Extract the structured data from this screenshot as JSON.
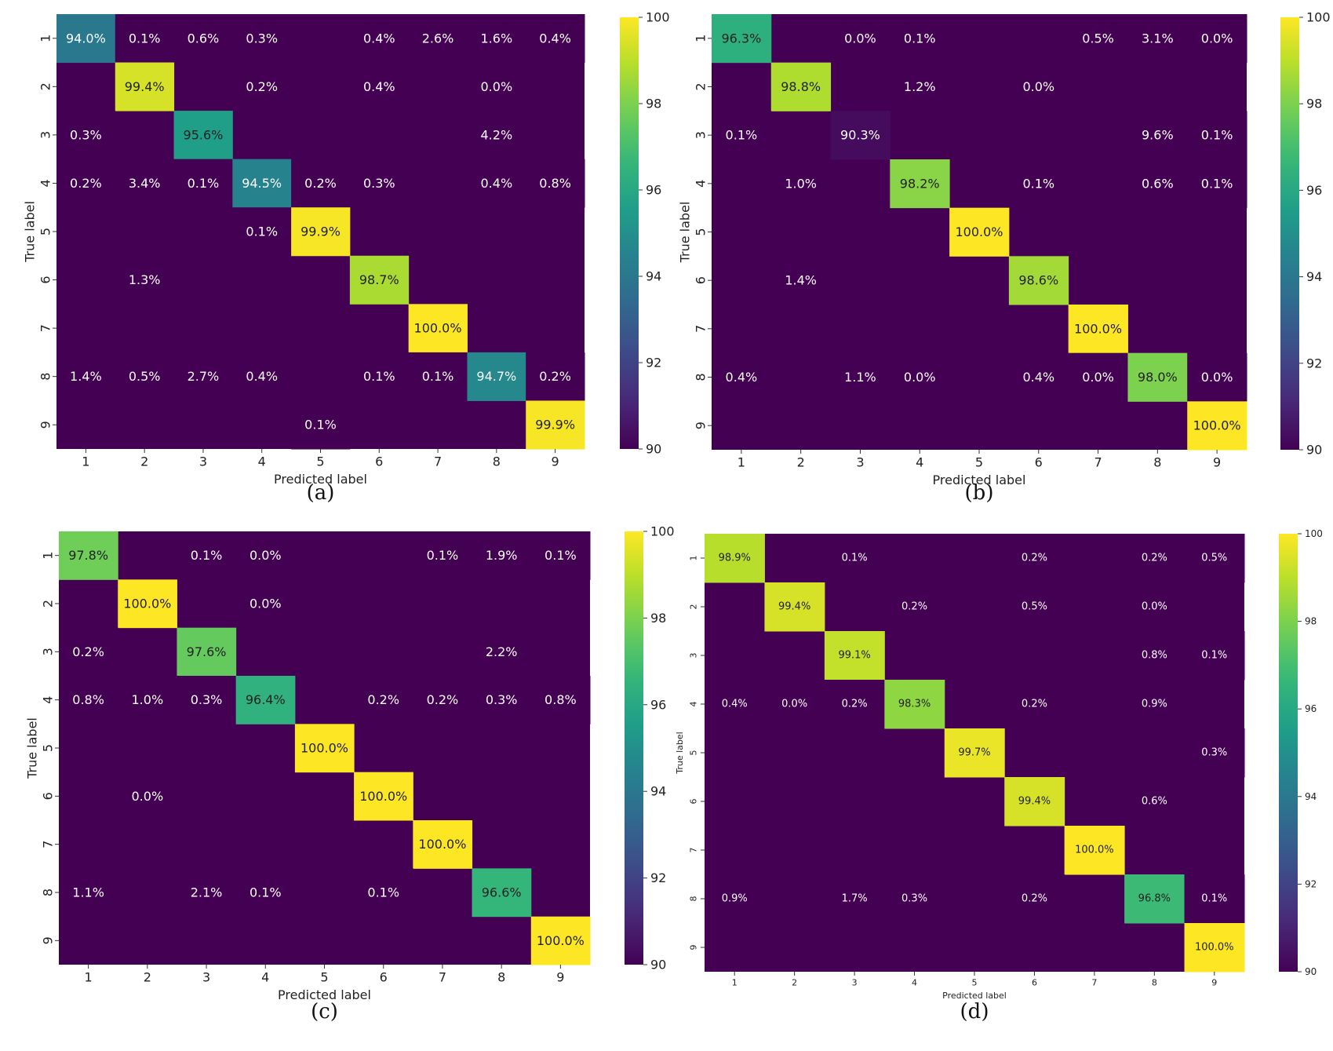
{
  "colorbar": {
    "ticks": [
      "90",
      "92",
      "94",
      "96",
      "98",
      "100"
    ],
    "range": [
      90,
      100
    ]
  },
  "chart_data": [
    {
      "type": "heatmap",
      "caption": "(a)",
      "xlabel": "Predicted label",
      "ylabel": "True label",
      "x_categories": [
        "1",
        "2",
        "3",
        "4",
        "5",
        "6",
        "7",
        "8",
        "9"
      ],
      "y_categories": [
        "1",
        "2",
        "3",
        "4",
        "5",
        "6",
        "7",
        "8",
        "9"
      ],
      "colorbar_range": [
        90,
        100
      ],
      "cells": [
        {
          "r": 1,
          "c": 1,
          "v": 94.0,
          "label": "94.0%"
        },
        {
          "r": 1,
          "c": 2,
          "v": 0.1,
          "label": "0.1%"
        },
        {
          "r": 1,
          "c": 3,
          "v": 0.6,
          "label": "0.6%"
        },
        {
          "r": 1,
          "c": 4,
          "v": 0.3,
          "label": "0.3%"
        },
        {
          "r": 1,
          "c": 6,
          "v": 0.4,
          "label": "0.4%"
        },
        {
          "r": 1,
          "c": 7,
          "v": 2.6,
          "label": "2.6%"
        },
        {
          "r": 1,
          "c": 8,
          "v": 1.6,
          "label": "1.6%"
        },
        {
          "r": 1,
          "c": 9,
          "v": 0.4,
          "label": "0.4%"
        },
        {
          "r": 2,
          "c": 2,
          "v": 99.4,
          "label": "99.4%"
        },
        {
          "r": 2,
          "c": 4,
          "v": 0.2,
          "label": "0.2%"
        },
        {
          "r": 2,
          "c": 6,
          "v": 0.4,
          "label": "0.4%"
        },
        {
          "r": 2,
          "c": 8,
          "v": 0.0,
          "label": "0.0%"
        },
        {
          "r": 3,
          "c": 1,
          "v": 0.3,
          "label": "0.3%"
        },
        {
          "r": 3,
          "c": 3,
          "v": 95.6,
          "label": "95.6%"
        },
        {
          "r": 3,
          "c": 8,
          "v": 4.2,
          "label": "4.2%"
        },
        {
          "r": 4,
          "c": 1,
          "v": 0.2,
          "label": "0.2%"
        },
        {
          "r": 4,
          "c": 2,
          "v": 3.4,
          "label": "3.4%"
        },
        {
          "r": 4,
          "c": 3,
          "v": 0.1,
          "label": "0.1%"
        },
        {
          "r": 4,
          "c": 4,
          "v": 94.5,
          "label": "94.5%"
        },
        {
          "r": 4,
          "c": 5,
          "v": 0.2,
          "label": "0.2%"
        },
        {
          "r": 4,
          "c": 6,
          "v": 0.3,
          "label": "0.3%"
        },
        {
          "r": 4,
          "c": 8,
          "v": 0.4,
          "label": "0.4%"
        },
        {
          "r": 4,
          "c": 9,
          "v": 0.8,
          "label": "0.8%"
        },
        {
          "r": 5,
          "c": 4,
          "v": 0.1,
          "label": "0.1%"
        },
        {
          "r": 5,
          "c": 5,
          "v": 99.9,
          "label": "99.9%"
        },
        {
          "r": 6,
          "c": 2,
          "v": 1.3,
          "label": "1.3%"
        },
        {
          "r": 6,
          "c": 6,
          "v": 98.7,
          "label": "98.7%"
        },
        {
          "r": 7,
          "c": 7,
          "v": 100.0,
          "label": "100.0%"
        },
        {
          "r": 8,
          "c": 1,
          "v": 1.4,
          "label": "1.4%"
        },
        {
          "r": 8,
          "c": 2,
          "v": 0.5,
          "label": "0.5%"
        },
        {
          "r": 8,
          "c": 3,
          "v": 2.7,
          "label": "2.7%"
        },
        {
          "r": 8,
          "c": 4,
          "v": 0.4,
          "label": "0.4%"
        },
        {
          "r": 8,
          "c": 6,
          "v": 0.1,
          "label": "0.1%"
        },
        {
          "r": 8,
          "c": 7,
          "v": 0.1,
          "label": "0.1%"
        },
        {
          "r": 8,
          "c": 8,
          "v": 94.7,
          "label": "94.7%"
        },
        {
          "r": 8,
          "c": 9,
          "v": 0.2,
          "label": "0.2%"
        },
        {
          "r": 9,
          "c": 5,
          "v": 0.1,
          "label": "0.1%"
        },
        {
          "r": 9,
          "c": 9,
          "v": 99.9,
          "label": "99.9%"
        }
      ]
    },
    {
      "type": "heatmap",
      "caption": "(b)",
      "xlabel": "Predicted label",
      "ylabel": "True label",
      "x_categories": [
        "1",
        "2",
        "3",
        "4",
        "5",
        "6",
        "7",
        "8",
        "9"
      ],
      "y_categories": [
        "1",
        "2",
        "3",
        "4",
        "5",
        "6",
        "7",
        "8",
        "9"
      ],
      "colorbar_range": [
        90,
        100
      ],
      "cells": [
        {
          "r": 1,
          "c": 1,
          "v": 96.3,
          "label": "96.3%"
        },
        {
          "r": 1,
          "c": 3,
          "v": 0.0,
          "label": "0.0%"
        },
        {
          "r": 1,
          "c": 4,
          "v": 0.1,
          "label": "0.1%"
        },
        {
          "r": 1,
          "c": 7,
          "v": 0.5,
          "label": "0.5%"
        },
        {
          "r": 1,
          "c": 8,
          "v": 3.1,
          "label": "3.1%"
        },
        {
          "r": 1,
          "c": 9,
          "v": 0.0,
          "label": "0.0%"
        },
        {
          "r": 2,
          "c": 2,
          "v": 98.8,
          "label": "98.8%"
        },
        {
          "r": 2,
          "c": 4,
          "v": 1.2,
          "label": "1.2%"
        },
        {
          "r": 2,
          "c": 6,
          "v": 0.0,
          "label": "0.0%"
        },
        {
          "r": 3,
          "c": 1,
          "v": 0.1,
          "label": "0.1%"
        },
        {
          "r": 3,
          "c": 3,
          "v": 90.3,
          "label": "90.3%"
        },
        {
          "r": 3,
          "c": 8,
          "v": 9.6,
          "label": "9.6%"
        },
        {
          "r": 3,
          "c": 9,
          "v": 0.1,
          "label": "0.1%"
        },
        {
          "r": 4,
          "c": 2,
          "v": 1.0,
          "label": "1.0%"
        },
        {
          "r": 4,
          "c": 4,
          "v": 98.2,
          "label": "98.2%"
        },
        {
          "r": 4,
          "c": 6,
          "v": 0.1,
          "label": "0.1%"
        },
        {
          "r": 4,
          "c": 8,
          "v": 0.6,
          "label": "0.6%"
        },
        {
          "r": 4,
          "c": 9,
          "v": 0.1,
          "label": "0.1%"
        },
        {
          "r": 5,
          "c": 5,
          "v": 100.0,
          "label": "100.0%"
        },
        {
          "r": 6,
          "c": 2,
          "v": 1.4,
          "label": "1.4%"
        },
        {
          "r": 6,
          "c": 6,
          "v": 98.6,
          "label": "98.6%"
        },
        {
          "r": 7,
          "c": 7,
          "v": 100.0,
          "label": "100.0%"
        },
        {
          "r": 8,
          "c": 1,
          "v": 0.4,
          "label": "0.4%"
        },
        {
          "r": 8,
          "c": 3,
          "v": 1.1,
          "label": "1.1%"
        },
        {
          "r": 8,
          "c": 4,
          "v": 0.0,
          "label": "0.0%"
        },
        {
          "r": 8,
          "c": 6,
          "v": 0.4,
          "label": "0.4%"
        },
        {
          "r": 8,
          "c": 7,
          "v": 0.0,
          "label": "0.0%"
        },
        {
          "r": 8,
          "c": 8,
          "v": 98.0,
          "label": "98.0%"
        },
        {
          "r": 8,
          "c": 9,
          "v": 0.0,
          "label": "0.0%"
        },
        {
          "r": 9,
          "c": 9,
          "v": 100.0,
          "label": "100.0%"
        }
      ]
    },
    {
      "type": "heatmap",
      "caption": "(c)",
      "xlabel": "Predicted label",
      "ylabel": "True label",
      "x_categories": [
        "1",
        "2",
        "3",
        "4",
        "5",
        "6",
        "7",
        "8",
        "9"
      ],
      "y_categories": [
        "1",
        "2",
        "3",
        "4",
        "5",
        "6",
        "7",
        "8",
        "9"
      ],
      "colorbar_range": [
        90,
        100
      ],
      "cells": [
        {
          "r": 1,
          "c": 1,
          "v": 97.8,
          "label": "97.8%"
        },
        {
          "r": 1,
          "c": 3,
          "v": 0.1,
          "label": "0.1%"
        },
        {
          "r": 1,
          "c": 4,
          "v": 0.0,
          "label": "0.0%"
        },
        {
          "r": 1,
          "c": 7,
          "v": 0.1,
          "label": "0.1%"
        },
        {
          "r": 1,
          "c": 8,
          "v": 1.9,
          "label": "1.9%"
        },
        {
          "r": 1,
          "c": 9,
          "v": 0.1,
          "label": "0.1%"
        },
        {
          "r": 2,
          "c": 2,
          "v": 100.0,
          "label": "100.0%"
        },
        {
          "r": 2,
          "c": 4,
          "v": 0.0,
          "label": "0.0%"
        },
        {
          "r": 3,
          "c": 1,
          "v": 0.2,
          "label": "0.2%"
        },
        {
          "r": 3,
          "c": 3,
          "v": 97.6,
          "label": "97.6%"
        },
        {
          "r": 3,
          "c": 8,
          "v": 2.2,
          "label": "2.2%"
        },
        {
          "r": 4,
          "c": 1,
          "v": 0.8,
          "label": "0.8%"
        },
        {
          "r": 4,
          "c": 2,
          "v": 1.0,
          "label": "1.0%"
        },
        {
          "r": 4,
          "c": 3,
          "v": 0.3,
          "label": "0.3%"
        },
        {
          "r": 4,
          "c": 4,
          "v": 96.4,
          "label": "96.4%"
        },
        {
          "r": 4,
          "c": 6,
          "v": 0.2,
          "label": "0.2%"
        },
        {
          "r": 4,
          "c": 7,
          "v": 0.2,
          "label": "0.2%"
        },
        {
          "r": 4,
          "c": 8,
          "v": 0.3,
          "label": "0.3%"
        },
        {
          "r": 4,
          "c": 9,
          "v": 0.8,
          "label": "0.8%"
        },
        {
          "r": 5,
          "c": 5,
          "v": 100.0,
          "label": "100.0%"
        },
        {
          "r": 6,
          "c": 2,
          "v": 0.0,
          "label": "0.0%"
        },
        {
          "r": 6,
          "c": 6,
          "v": 100.0,
          "label": "100.0%"
        },
        {
          "r": 7,
          "c": 7,
          "v": 100.0,
          "label": "100.0%"
        },
        {
          "r": 8,
          "c": 1,
          "v": 1.1,
          "label": "1.1%"
        },
        {
          "r": 8,
          "c": 3,
          "v": 2.1,
          "label": "2.1%"
        },
        {
          "r": 8,
          "c": 4,
          "v": 0.1,
          "label": "0.1%"
        },
        {
          "r": 8,
          "c": 6,
          "v": 0.1,
          "label": "0.1%"
        },
        {
          "r": 8,
          "c": 8,
          "v": 96.6,
          "label": "96.6%"
        },
        {
          "r": 9,
          "c": 9,
          "v": 100.0,
          "label": "100.0%"
        }
      ]
    },
    {
      "type": "heatmap",
      "caption": "(d)",
      "xlabel": "Predicted label",
      "ylabel": "True label",
      "x_categories": [
        "1",
        "2",
        "3",
        "4",
        "5",
        "6",
        "7",
        "8",
        "9"
      ],
      "y_categories": [
        "1",
        "2",
        "3",
        "4",
        "5",
        "6",
        "7",
        "8",
        "9"
      ],
      "colorbar_range": [
        90,
        100
      ],
      "cells": [
        {
          "r": 1,
          "c": 1,
          "v": 98.9,
          "label": "98.9%"
        },
        {
          "r": 1,
          "c": 3,
          "v": 0.1,
          "label": "0.1%"
        },
        {
          "r": 1,
          "c": 6,
          "v": 0.2,
          "label": "0.2%"
        },
        {
          "r": 1,
          "c": 8,
          "v": 0.2,
          "label": "0.2%"
        },
        {
          "r": 1,
          "c": 9,
          "v": 0.5,
          "label": "0.5%"
        },
        {
          "r": 2,
          "c": 2,
          "v": 99.4,
          "label": "99.4%"
        },
        {
          "r": 2,
          "c": 4,
          "v": 0.2,
          "label": "0.2%"
        },
        {
          "r": 2,
          "c": 6,
          "v": 0.5,
          "label": "0.5%"
        },
        {
          "r": 2,
          "c": 8,
          "v": 0.0,
          "label": "0.0%"
        },
        {
          "r": 3,
          "c": 3,
          "v": 99.1,
          "label": "99.1%"
        },
        {
          "r": 3,
          "c": 8,
          "v": 0.8,
          "label": "0.8%"
        },
        {
          "r": 3,
          "c": 9,
          "v": 0.1,
          "label": "0.1%"
        },
        {
          "r": 4,
          "c": 1,
          "v": 0.4,
          "label": "0.4%"
        },
        {
          "r": 4,
          "c": 2,
          "v": 0.0,
          "label": "0.0%"
        },
        {
          "r": 4,
          "c": 3,
          "v": 0.2,
          "label": "0.2%"
        },
        {
          "r": 4,
          "c": 4,
          "v": 98.3,
          "label": "98.3%"
        },
        {
          "r": 4,
          "c": 6,
          "v": 0.2,
          "label": "0.2%"
        },
        {
          "r": 4,
          "c": 8,
          "v": 0.9,
          "label": "0.9%"
        },
        {
          "r": 5,
          "c": 5,
          "v": 99.7,
          "label": "99.7%"
        },
        {
          "r": 5,
          "c": 9,
          "v": 0.3,
          "label": "0.3%"
        },
        {
          "r": 6,
          "c": 6,
          "v": 99.4,
          "label": "99.4%"
        },
        {
          "r": 6,
          "c": 8,
          "v": 0.6,
          "label": "0.6%"
        },
        {
          "r": 7,
          "c": 7,
          "v": 100.0,
          "label": "100.0%"
        },
        {
          "r": 8,
          "c": 1,
          "v": 0.9,
          "label": "0.9%"
        },
        {
          "r": 8,
          "c": 3,
          "v": 1.7,
          "label": "1.7%"
        },
        {
          "r": 8,
          "c": 4,
          "v": 0.3,
          "label": "0.3%"
        },
        {
          "r": 8,
          "c": 6,
          "v": 0.2,
          "label": "0.2%"
        },
        {
          "r": 8,
          "c": 8,
          "v": 96.8,
          "label": "96.8%"
        },
        {
          "r": 8,
          "c": 9,
          "v": 0.1,
          "label": "0.1%"
        },
        {
          "r": 9,
          "c": 9,
          "v": 100.0,
          "label": "100.0%"
        }
      ]
    }
  ]
}
